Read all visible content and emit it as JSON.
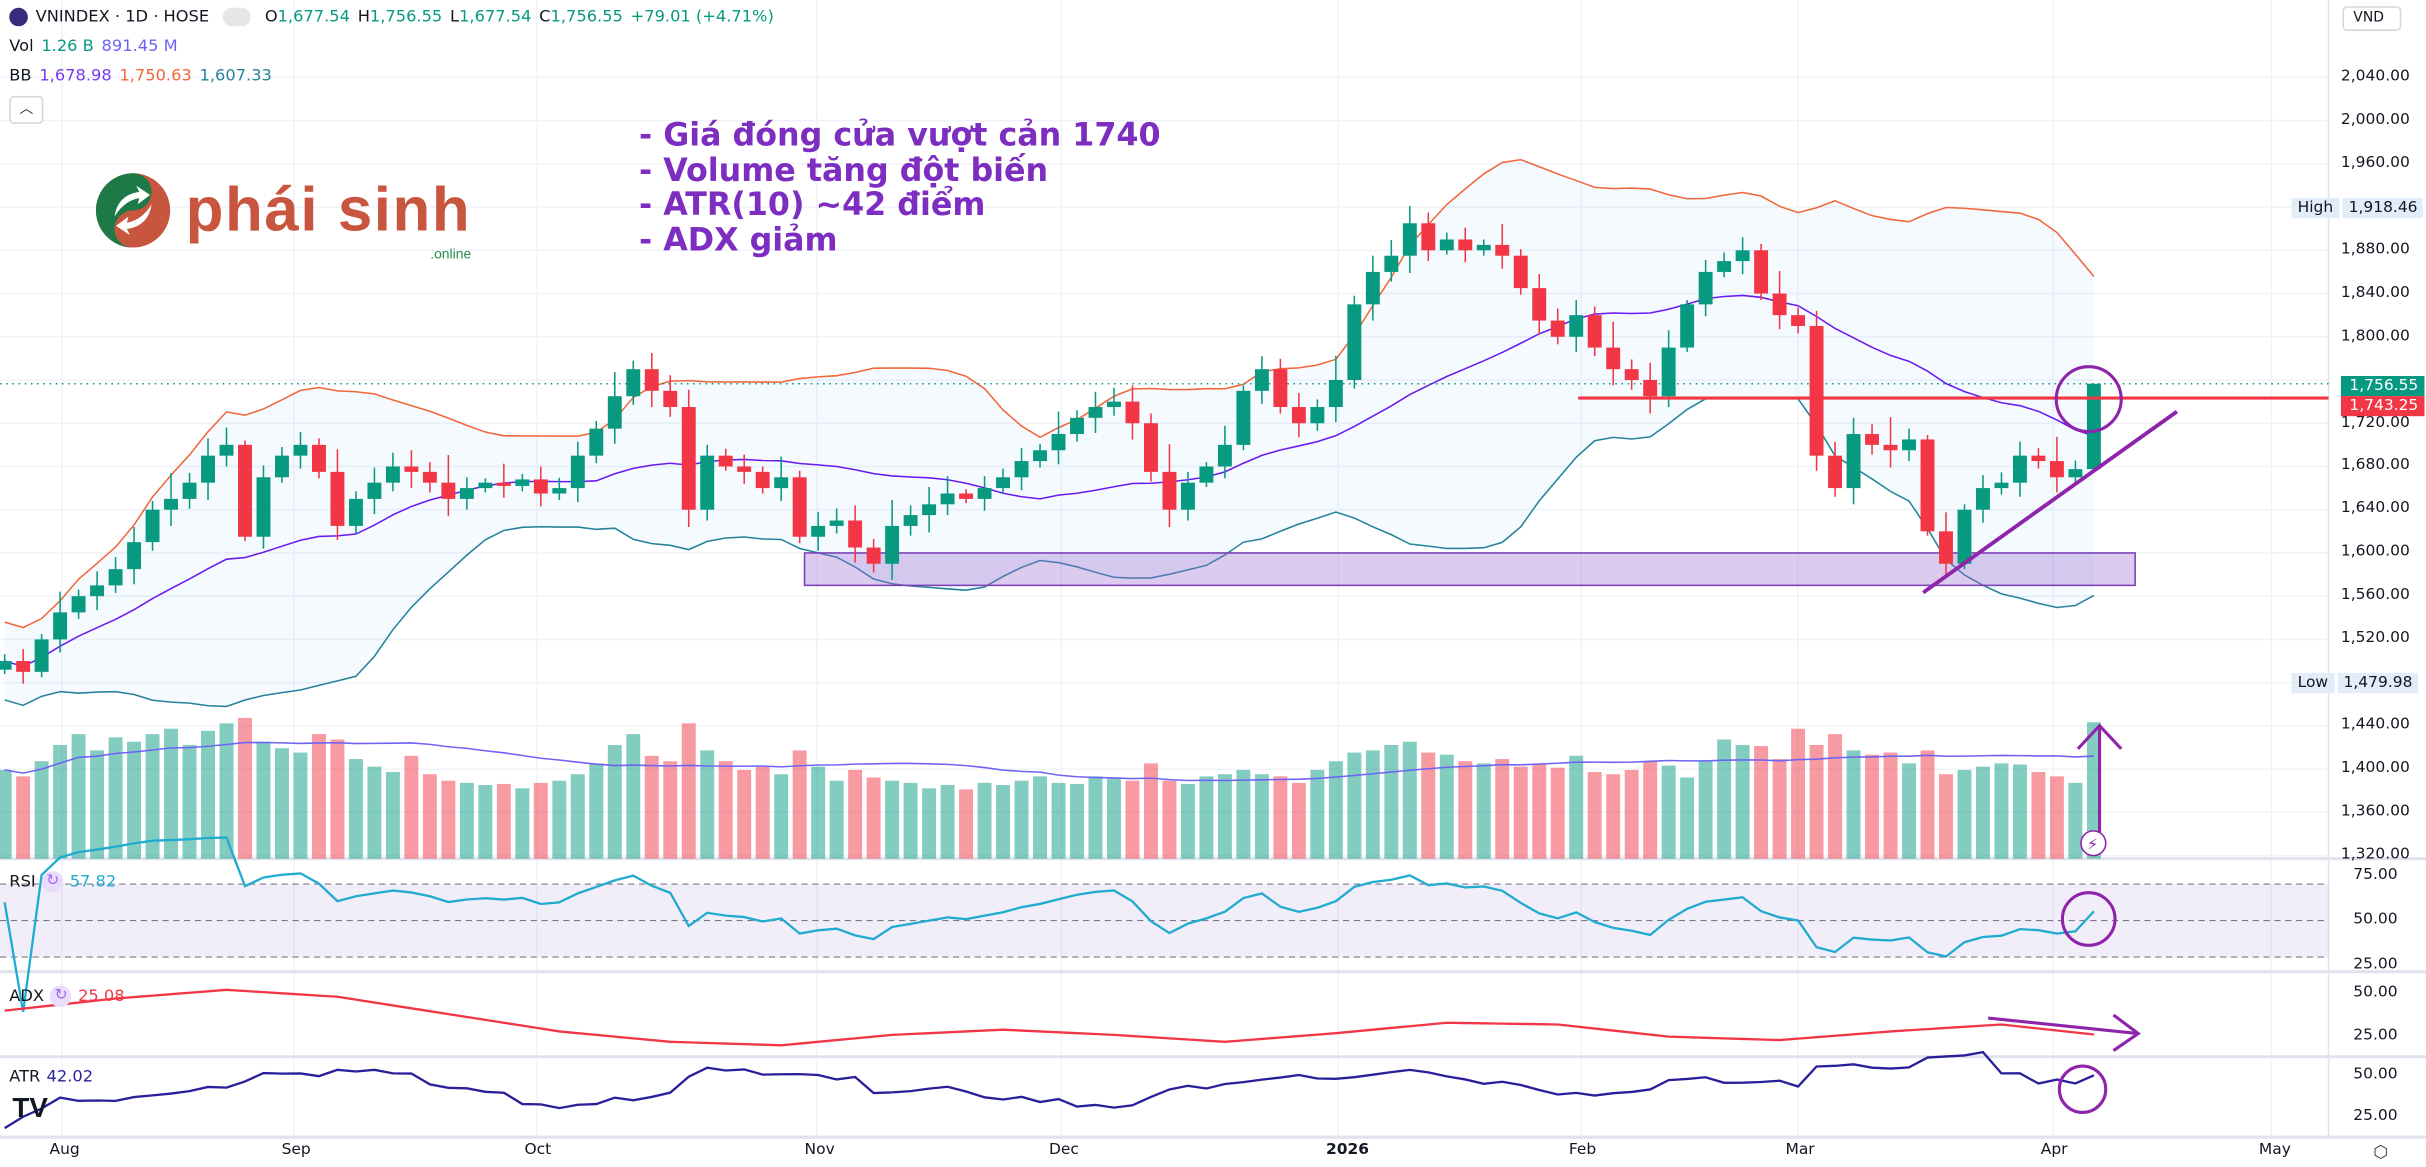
{
  "header": {
    "symbol": "VNINDEX · 1D · HOSE",
    "open_label": "O",
    "open": "1,677.54",
    "high_label": "H",
    "high": "1,756.55",
    "low_label": "L",
    "low": "1,677.54",
    "close_label": "C",
    "close": "1,756.55",
    "change": "+79.01 (+4.71%)",
    "vol_label": "Vol",
    "vol_value": "1.26 B",
    "vol_ma": "891.45 M",
    "bb_label": "BB",
    "bb_basis": "1,678.98",
    "bb_upper": "1,750.63",
    "bb_lower": "1,607.33",
    "collapse_icon": "chevron-up-icon",
    "currency": "VND"
  },
  "logo": {
    "text": "phái sinh",
    "suffix": ".online"
  },
  "annotations": {
    "lines": [
      "- Giá đóng cửa vượt cản 1740",
      "- Volume tăng đột biến",
      "- ATR(10) ~42 điểm",
      "- ADX giảm"
    ],
    "resistance": 1743.25,
    "support_zone": [
      1570,
      1600
    ]
  },
  "price_axis": {
    "ticks": [
      "2,040.00",
      "2,000.00",
      "1,960.00",
      "1,920.00",
      "1,880.00",
      "1,840.00",
      "1,800.00",
      "1,760.00",
      "1,720.00",
      "1,680.00",
      "1,640.00",
      "1,600.00",
      "1,560.00",
      "1,520.00",
      "1,480.00",
      "1,440.00",
      "1,400.00",
      "1,360.00",
      "1,320.00"
    ],
    "high_label": "High",
    "high_value": "1,918.46",
    "low_label": "Low",
    "low_value": "1,479.98",
    "last_price": "1,756.55",
    "line_price": "1,743.25"
  },
  "rsi": {
    "label": "RSI",
    "value": "57.82",
    "ticks": [
      "75.00",
      "50.00",
      "25.00"
    ]
  },
  "adx": {
    "label": "ADX",
    "value": "25.08",
    "ticks": [
      "50.00",
      "25.00"
    ],
    "samples_every": 6,
    "values": [
      40,
      47,
      52,
      48,
      38,
      28,
      22,
      20,
      26,
      29,
      26,
      22,
      27,
      33,
      32,
      25,
      23,
      28,
      32,
      25.08
    ]
  },
  "atr": {
    "label": "ATR",
    "value": "42.02",
    "ticks": [
      "50.00",
      "25.00"
    ]
  },
  "time_axis": [
    "Aug",
    "Sep",
    "Oct",
    "Nov",
    "Dec",
    "2026",
    "Feb",
    "Mar",
    "Apr",
    "May"
  ],
  "colors": {
    "up": "#089981",
    "down": "#f23645",
    "annotation": "#8e24aa",
    "bb_upper": "#f2663a",
    "bb_basis": "#6a1bf0",
    "bb_lower": "#26829b",
    "rsi": "#22abd0",
    "adx": "#f23645",
    "atr": "#2a1f9a"
  },
  "chart_data": {
    "type": "candlestick",
    "title": "VNINDEX · 1D · HOSE",
    "last_candle": {
      "open": 1677.54,
      "high": 1756.55,
      "low": 1677.54,
      "close": 1756.55
    },
    "ylim": [
      1320,
      2040
    ],
    "closes": [
      1500,
      1490,
      1520,
      1545,
      1560,
      1570,
      1585,
      1610,
      1640,
      1650,
      1665,
      1690,
      1700,
      1615,
      1670,
      1690,
      1700,
      1675,
      1625,
      1650,
      1665,
      1680,
      1675,
      1665,
      1650,
      1660,
      1665,
      1662,
      1668,
      1655,
      1660,
      1690,
      1715,
      1745,
      1770,
      1750,
      1735,
      1640,
      1690,
      1680,
      1675,
      1660,
      1670,
      1615,
      1625,
      1630,
      1605,
      1590,
      1625,
      1635,
      1645,
      1655,
      1650,
      1660,
      1670,
      1685,
      1695,
      1710,
      1725,
      1735,
      1740,
      1720,
      1675,
      1640,
      1665,
      1680,
      1700,
      1750,
      1770,
      1735,
      1720,
      1735,
      1760,
      1830,
      1860,
      1875,
      1905,
      1880,
      1890,
      1880,
      1885,
      1875,
      1845,
      1815,
      1800,
      1820,
      1790,
      1770,
      1760,
      1745,
      1790,
      1830,
      1860,
      1870,
      1880,
      1840,
      1820,
      1810,
      1690,
      1660,
      1710,
      1700,
      1695,
      1705,
      1620,
      1590,
      1640,
      1660,
      1665,
      1690,
      1685,
      1670,
      1677.54,
      1756.55
    ],
    "volumes_millions": [
      820,
      760,
      900,
      1050,
      1150,
      1000,
      1120,
      1080,
      1150,
      1200,
      1050,
      1180,
      1250,
      1300,
      1080,
      1020,
      980,
      1150,
      1100,
      920,
      850,
      800,
      950,
      780,
      720,
      700,
      680,
      690,
      650,
      700,
      720,
      780,
      880,
      1050,
      1150,
      950,
      900,
      1250,
      1000,
      900,
      820,
      850,
      780,
      1000,
      850,
      720,
      820,
      750,
      720,
      700,
      650,
      680,
      640,
      700,
      680,
      720,
      760,
      700,
      690,
      760,
      740,
      720,
      880,
      720,
      690,
      760,
      780,
      820,
      780,
      760,
      700,
      820,
      900,
      980,
      1000,
      1050,
      1080,
      980,
      960,
      900,
      880,
      920,
      850,
      870,
      840,
      950,
      800,
      780,
      820,
      900,
      860,
      750,
      900,
      1100,
      1050,
      1040,
      920,
      1200,
      1050,
      1150,
      1000,
      960,
      980,
      880,
      1000,
      780,
      820,
      850,
      880,
      870,
      800,
      760,
      700,
      1260
    ]
  }
}
